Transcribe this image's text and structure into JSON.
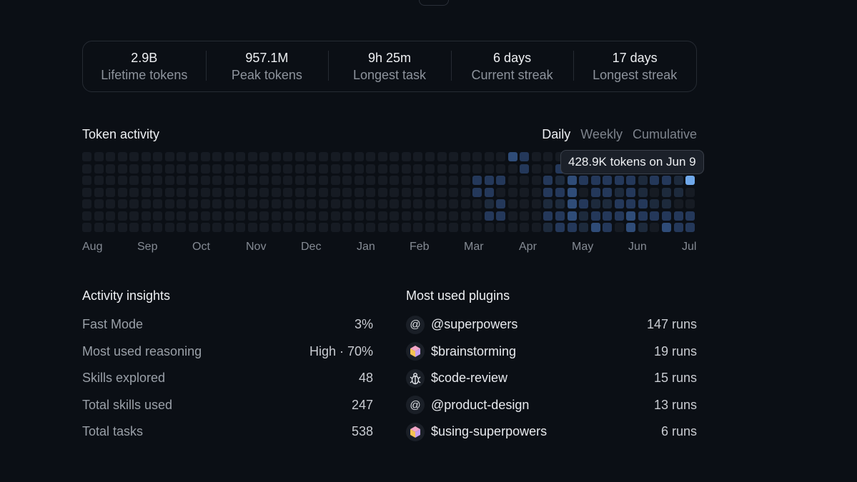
{
  "stats": [
    {
      "value": "2.9B",
      "label": "Lifetime tokens"
    },
    {
      "value": "957.1M",
      "label": "Peak tokens"
    },
    {
      "value": "9h 25m",
      "label": "Longest task"
    },
    {
      "value": "6 days",
      "label": "Current streak"
    },
    {
      "value": "17 days",
      "label": "Longest streak"
    }
  ],
  "activity": {
    "title": "Token activity",
    "views": [
      "Daily",
      "Weekly",
      "Cumulative"
    ],
    "active_view": "Daily",
    "months": [
      "Aug",
      "Sep",
      "Oct",
      "Nov",
      "Dec",
      "Jan",
      "Feb",
      "Mar",
      "Apr",
      "May",
      "Jun",
      "Jul"
    ],
    "tooltip": "428.9K tokens on Jun 9",
    "colors": {
      "empty": "#161b23",
      "level1": "#1d2a3c",
      "level2": "#24385a",
      "level3": "#2f4c78",
      "highlight": "#6fa8ea"
    }
  },
  "insights": {
    "title": "Activity insights",
    "rows": [
      {
        "label": "Fast Mode",
        "value": "3%"
      },
      {
        "label": "Most used reasoning",
        "value": "High · 70%"
      },
      {
        "label": "Skills explored",
        "value": "48"
      },
      {
        "label": "Total skills used",
        "value": "247"
      },
      {
        "label": "Total tasks",
        "value": "538"
      }
    ]
  },
  "plugins": {
    "title": "Most used plugins",
    "rows": [
      {
        "icon": "at-sign-icon",
        "name": "@superpowers",
        "runs": "147 runs"
      },
      {
        "icon": "cube-icon",
        "name": "$brainstorming",
        "runs": "19 runs"
      },
      {
        "icon": "bug-icon",
        "name": "$code-review",
        "runs": "15 runs"
      },
      {
        "icon": "at-sign-icon",
        "name": "@product-design",
        "runs": "13 runs"
      },
      {
        "icon": "cube-icon",
        "name": "$using-superpowers",
        "runs": "6 runs"
      }
    ]
  }
}
